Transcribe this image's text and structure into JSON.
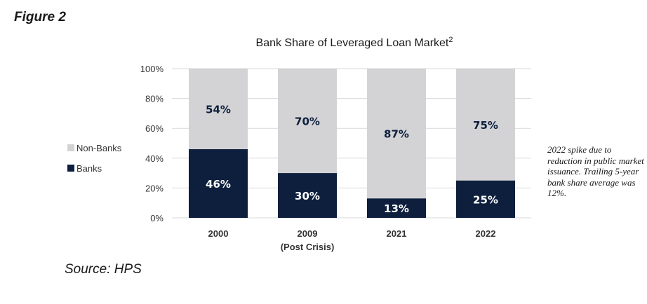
{
  "figure_label": "Figure 2",
  "source": "Source: HPS",
  "annotation": "2022 spike due to reduction in public market issuance. Trailing 5-year bank share average was 12%.",
  "colors": {
    "banks": "#0d1f3c",
    "non_banks": "#d3d3d6",
    "gridline": "#d9d9d9",
    "axis_text": "#333333",
    "bank_label": "#ffffff",
    "nonbank_label": "#0d1f3c"
  },
  "chart_data": {
    "type": "bar",
    "stacked": true,
    "title": "Bank Share of Leveraged Loan Market",
    "title_superscript": "2",
    "categories": [
      "2000",
      "2009",
      "2021",
      "2022"
    ],
    "category_sublabels": [
      "",
      "(Post Crisis)",
      "",
      ""
    ],
    "series": [
      {
        "name": "Banks",
        "values": [
          46,
          30,
          13,
          25
        ],
        "labels": [
          "46%",
          "30%",
          "13%",
          "25%"
        ]
      },
      {
        "name": "Non-Banks",
        "values": [
          54,
          70,
          87,
          75
        ],
        "labels": [
          "54%",
          "70%",
          "87%",
          "75%"
        ]
      }
    ],
    "ylim": [
      0,
      100
    ],
    "yticks": [
      "0%",
      "20%",
      "40%",
      "60%",
      "80%",
      "100%"
    ],
    "legend": {
      "placement": "left",
      "entries": [
        "Non-Banks",
        "Banks"
      ]
    },
    "grid": true
  }
}
